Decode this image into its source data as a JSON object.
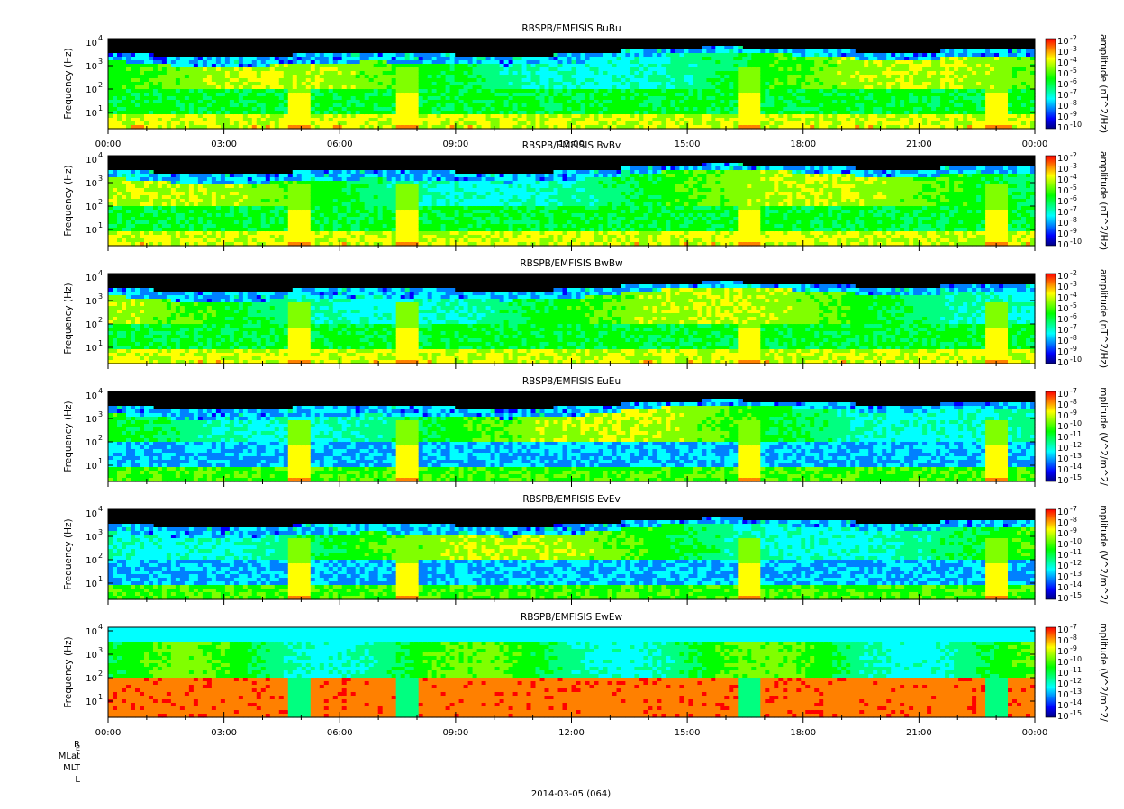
{
  "footer_date": "2014-03-05 (064)",
  "ephemeris_labels": [
    "R",
    "MLat",
    "MLT",
    "L"
  ],
  "ephemeris_subscript": "E",
  "colors": {
    "palette": [
      "#000080",
      "#0000ff",
      "#0080ff",
      "#00ffff",
      "#00ff80",
      "#00ff00",
      "#80ff00",
      "#ffff00",
      "#ff8000",
      "#ff0000"
    ],
    "empty": "#000000"
  },
  "chart_data": [
    {
      "type": "heatmap",
      "title": "RBSPB/EMFISIS  BuBu",
      "ylabel": "Frequency (Hz)",
      "yscale": "log",
      "yticks": [
        "10",
        "10",
        "10",
        "10"
      ],
      "ytick_exponents": [
        "1",
        "2",
        "3",
        "4"
      ],
      "colorbar_label": "amplitude (nT^2/Hz)",
      "colorbar_ticks": [
        "10",
        "10",
        "10",
        "10",
        "10",
        "10",
        "10",
        "10",
        "10"
      ],
      "colorbar_exponents": [
        "-2",
        "-3",
        "-4",
        "-5",
        "-6",
        "-7",
        "-8",
        "-9",
        "-10"
      ],
      "xlabels": [
        "00:00",
        "03:00",
        "06:00",
        "09:00",
        "12:00",
        "15:00",
        "18:00",
        "21:00",
        "00:00"
      ]
    },
    {
      "type": "heatmap",
      "title": "RBSPB/EMFISIS  BvBv",
      "ylabel": "Frequency (Hz)",
      "yscale": "log",
      "yticks": [
        "10",
        "10",
        "10",
        "10"
      ],
      "ytick_exponents": [
        "1",
        "2",
        "3",
        "4"
      ],
      "colorbar_label": "amplitude (nT^2/Hz)",
      "colorbar_ticks": [
        "10",
        "10",
        "10",
        "10",
        "10",
        "10",
        "10",
        "10",
        "10"
      ],
      "colorbar_exponents": [
        "-2",
        "-3",
        "-4",
        "-5",
        "-6",
        "-7",
        "-8",
        "-9",
        "-10"
      ],
      "xlabels": []
    },
    {
      "type": "heatmap",
      "title": "RBSPB/EMFISIS  BwBw",
      "ylabel": "Frequency (Hz)",
      "yscale": "log",
      "yticks": [
        "10",
        "10",
        "10",
        "10"
      ],
      "ytick_exponents": [
        "1",
        "2",
        "3",
        "4"
      ],
      "colorbar_label": "amplitude (nT^2/Hz)",
      "colorbar_ticks": [
        "10",
        "10",
        "10",
        "10",
        "10",
        "10",
        "10",
        "10",
        "10"
      ],
      "colorbar_exponents": [
        "-2",
        "-3",
        "-4",
        "-5",
        "-6",
        "-7",
        "-8",
        "-9",
        "-10"
      ],
      "xlabels": []
    },
    {
      "type": "heatmap",
      "title": "RBSPB/EMFISIS  EuEu",
      "ylabel": "Frequency (Hz)",
      "yscale": "log",
      "yticks": [
        "10",
        "10",
        "10",
        "10"
      ],
      "ytick_exponents": [
        "1",
        "2",
        "3",
        "4"
      ],
      "colorbar_label": "mplitude (V^2/m^2/",
      "colorbar_ticks": [
        "10",
        "10",
        "10",
        "10",
        "10",
        "10",
        "10",
        "10",
        "10"
      ],
      "colorbar_exponents": [
        "-7",
        "-8",
        "-9",
        "-10",
        "-11",
        "-12",
        "-13",
        "-14",
        "-15"
      ],
      "xlabels": []
    },
    {
      "type": "heatmap",
      "title": "RBSPB/EMFISIS  EvEv",
      "ylabel": "Frequency (Hz)",
      "yscale": "log",
      "yticks": [
        "10",
        "10",
        "10",
        "10"
      ],
      "ytick_exponents": [
        "1",
        "2",
        "3",
        "4"
      ],
      "colorbar_label": "mplitude (V^2/m^2/",
      "colorbar_ticks": [
        "10",
        "10",
        "10",
        "10",
        "10",
        "10",
        "10",
        "10",
        "10"
      ],
      "colorbar_exponents": [
        "-7",
        "-8",
        "-9",
        "-10",
        "-11",
        "-12",
        "-13",
        "-14",
        "-15"
      ],
      "xlabels": []
    },
    {
      "type": "heatmap",
      "title": "RBSPB/EMFISIS  EwEw",
      "ylabel": "Frequency (Hz)",
      "yscale": "log",
      "yticks": [
        "10",
        "10",
        "10",
        "10"
      ],
      "ytick_exponents": [
        "1",
        "2",
        "3",
        "4"
      ],
      "colorbar_label": "mplitude (V^2/m^2/",
      "colorbar_ticks": [
        "10",
        "10",
        "10",
        "10",
        "10",
        "10",
        "10",
        "10",
        "10"
      ],
      "colorbar_exponents": [
        "-7",
        "-8",
        "-9",
        "-10",
        "-11",
        "-12",
        "-13",
        "-14",
        "-15"
      ],
      "xlabels": [
        "00:00",
        "03:00",
        "06:00",
        "09:00",
        "12:00",
        "15:00",
        "18:00",
        "21:00",
        "00:00"
      ]
    }
  ]
}
